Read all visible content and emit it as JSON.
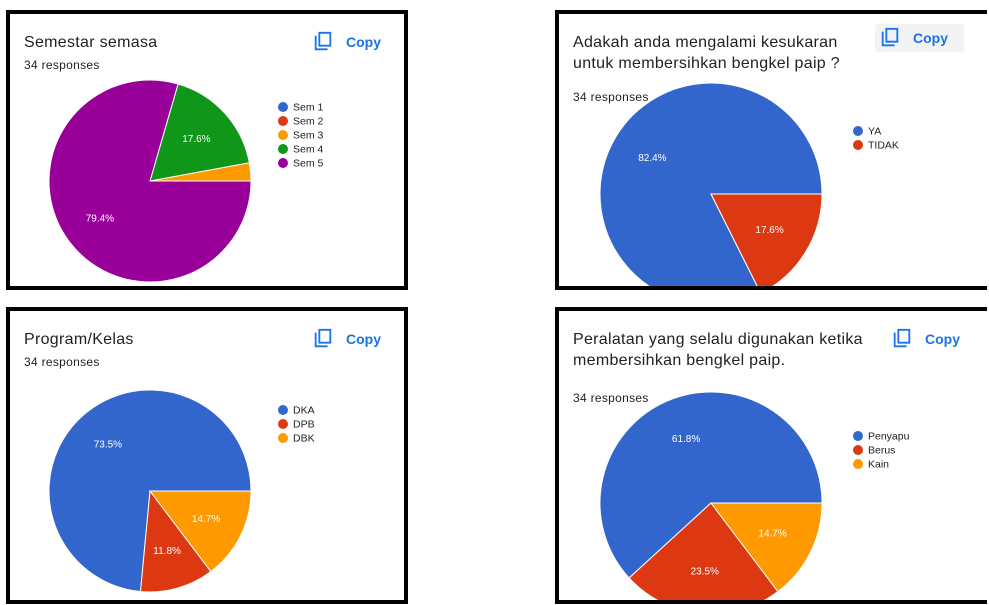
{
  "copy_label": "Copy",
  "chart_data": [
    {
      "type": "pie",
      "title": "Semestar semasa",
      "responses": "34 responses",
      "legend_position": "right",
      "slices": [
        {
          "label": "Sem 1",
          "value": 0,
          "percent_label": "",
          "color": "#3366cc"
        },
        {
          "label": "Sem 2",
          "value": 0,
          "percent_label": "",
          "color": "#dc3912"
        },
        {
          "label": "Sem 3",
          "value": 2.9,
          "percent_label": "",
          "color": "#ff9900"
        },
        {
          "label": "Sem 4",
          "value": 17.6,
          "percent_label": "17.6%",
          "color": "#109618"
        },
        {
          "label": "Sem 5",
          "value": 79.4,
          "percent_label": "79.4%",
          "color": "#990099"
        }
      ]
    },
    {
      "type": "pie",
      "title": "Adakah anda mengalami kesukaran untuk membersihkan bengkel paip ?",
      "responses": "34 responses",
      "legend_position": "right",
      "slices": [
        {
          "label": "YA",
          "value": 82.4,
          "percent_label": "82.4%",
          "color": "#3366cc"
        },
        {
          "label": "TIDAK",
          "value": 17.6,
          "percent_label": "17.6%",
          "color": "#dc3912"
        }
      ]
    },
    {
      "type": "pie",
      "title": "Program/Kelas",
      "responses": "34 responses",
      "legend_position": "right",
      "slices": [
        {
          "label": "DKA",
          "value": 73.5,
          "percent_label": "73.5%",
          "color": "#3366cc"
        },
        {
          "label": "DPB",
          "value": 11.8,
          "percent_label": "11.8%",
          "color": "#dc3912"
        },
        {
          "label": "DBK",
          "value": 14.7,
          "percent_label": "14.7%",
          "color": "#ff9900"
        }
      ]
    },
    {
      "type": "pie",
      "title": "Peralatan yang selalu digunakan ketika membersihkan bengkel paip.",
      "responses": "34 responses",
      "legend_position": "right",
      "slices": [
        {
          "label": "Penyapu",
          "value": 61.8,
          "percent_label": "61.8%",
          "color": "#3366cc"
        },
        {
          "label": "Berus",
          "value": 23.5,
          "percent_label": "23.5%",
          "color": "#dc3912"
        },
        {
          "label": "Kain",
          "value": 14.7,
          "percent_label": "14.7%",
          "color": "#ff9900"
        }
      ]
    }
  ]
}
